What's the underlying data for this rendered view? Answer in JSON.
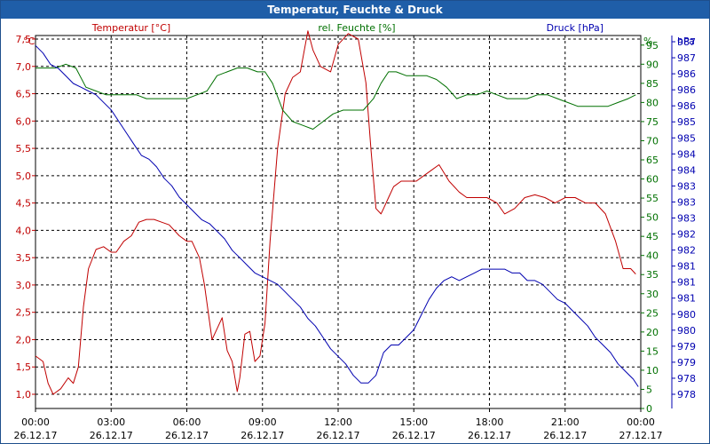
{
  "window": {
    "title": "Temperatur, Feuchte & Druck"
  },
  "chart_data": {
    "type": "line",
    "title": "Temperatur, Feuchte & Druck",
    "colors": {
      "temp": "#c00000",
      "hum": "#007000",
      "press": "#0000b0",
      "grid": "#000000",
      "frame": "#1f5ea8"
    },
    "x_ticks": [
      {
        "time": "00:00",
        "date": "26.12.17"
      },
      {
        "time": "03:00",
        "date": "26.12.17"
      },
      {
        "time": "06:00",
        "date": "26.12.17"
      },
      {
        "time": "09:00",
        "date": "26.12.17"
      },
      {
        "time": "12:00",
        "date": "26.12.17"
      },
      {
        "time": "15:00",
        "date": "26.12.17"
      },
      {
        "time": "18:00",
        "date": "26.12.17"
      },
      {
        "time": "21:00",
        "date": "26.12.17"
      },
      {
        "time": "00:00",
        "date": "27.12.17"
      }
    ],
    "xlim": [
      0,
      24
    ],
    "axes": {
      "temp": {
        "name": "Temperatur [°C]",
        "unit": "°C",
        "ylim": [
          0.8,
          7.85
        ],
        "ticks": [
          "1,0",
          "1,5",
          "2,0",
          "2,5",
          "3,0",
          "3,5",
          "4,0",
          "4,5",
          "5,0",
          "5,5",
          "6,0",
          "6,5",
          "7,0",
          "7,5"
        ]
      },
      "hum": {
        "name": "rel. Feuchte [%]",
        "unit": "%",
        "ylim": [
          0,
          97.5
        ],
        "ticks": [
          "0",
          "5",
          "10",
          "15",
          "20",
          "25",
          "30",
          "35",
          "40",
          "45",
          "50",
          "55",
          "60",
          "65",
          "70",
          "75",
          "80",
          "85",
          "90",
          "95"
        ]
      },
      "press": {
        "name": "Druck [hPa]",
        "unit": "hPa",
        "ticks": [
          "978",
          "978",
          "979",
          "979",
          "980",
          "980",
          "981",
          "981",
          "981",
          "982",
          "982",
          "983",
          "983",
          "983",
          "984",
          "984",
          "985",
          "985",
          "986",
          "986",
          "986",
          "987",
          "987"
        ]
      }
    },
    "series": [
      {
        "name": "Temperatur [°C]",
        "axis": "temp",
        "x": [
          0,
          0.3,
          0.5,
          0.7,
          1.0,
          1.3,
          1.5,
          1.7,
          1.9,
          2.1,
          2.4,
          2.7,
          3.0,
          3.2,
          3.5,
          3.8,
          4.1,
          4.4,
          4.7,
          5.0,
          5.3,
          5.7,
          6.0,
          6.2,
          6.5,
          6.7,
          7.0,
          7.2,
          7.4,
          7.6,
          7.8,
          8.0,
          8.1,
          8.3,
          8.5,
          8.7,
          8.9,
          9.1,
          9.3,
          9.6,
          9.9,
          10.2,
          10.5,
          10.8,
          11.0,
          11.3,
          11.7,
          12.0,
          12.4,
          12.8,
          13.1,
          13.3,
          13.5,
          13.7,
          13.8,
          14.0,
          14.2,
          14.5,
          14.8,
          15.1,
          15.4,
          15.7,
          16.0,
          16.4,
          16.8,
          17.1,
          17.5,
          17.9,
          18.3,
          18.6,
          19.0,
          19.4,
          19.8,
          20.2,
          20.6,
          21.0,
          21.4,
          21.8,
          22.2,
          22.6,
          23.0,
          23.3,
          23.6,
          23.8
        ],
        "values": [
          1.7,
          1.6,
          1.2,
          1.0,
          1.1,
          1.3,
          1.2,
          1.5,
          2.6,
          3.3,
          3.65,
          3.7,
          3.6,
          3.6,
          3.8,
          3.9,
          4.15,
          4.2,
          4.2,
          4.15,
          4.1,
          3.9,
          3.8,
          3.8,
          3.5,
          3.0,
          2.0,
          2.2,
          2.4,
          1.8,
          1.6,
          1.05,
          1.3,
          2.1,
          2.15,
          1.6,
          1.7,
          2.3,
          3.8,
          5.5,
          6.5,
          6.8,
          6.9,
          7.65,
          7.3,
          7.0,
          6.9,
          7.4,
          7.6,
          7.5,
          6.7,
          5.5,
          4.4,
          4.3,
          4.4,
          4.6,
          4.8,
          4.9,
          4.9,
          4.9,
          5.0,
          5.1,
          5.2,
          4.9,
          4.7,
          4.6,
          4.6,
          4.6,
          4.5,
          4.3,
          4.4,
          4.6,
          4.65,
          4.6,
          4.5,
          4.6,
          4.6,
          4.5,
          4.5,
          4.3,
          3.8,
          3.3,
          3.3,
          3.2
        ]
      },
      {
        "name": "rel. Feuchte [%]",
        "axis": "hum",
        "x": [
          0,
          0.4,
          0.8,
          1.2,
          1.6,
          2.0,
          2.4,
          2.8,
          3.2,
          3.6,
          4.0,
          4.4,
          4.8,
          5.2,
          5.6,
          6.0,
          6.4,
          6.8,
          7.2,
          7.6,
          8.0,
          8.4,
          8.8,
          9.1,
          9.4,
          9.8,
          10.2,
          10.6,
          11.0,
          11.4,
          11.8,
          12.2,
          12.6,
          13.0,
          13.4,
          13.7,
          14.0,
          14.3,
          14.7,
          15.1,
          15.5,
          15.9,
          16.3,
          16.7,
          17.1,
          17.5,
          17.9,
          18.3,
          18.7,
          19.1,
          19.5,
          19.9,
          20.3,
          20.7,
          21.1,
          21.5,
          21.9,
          22.3,
          22.7,
          23.1,
          23.5,
          23.8
        ],
        "values": [
          89,
          89,
          89,
          90,
          89,
          84,
          83,
          82,
          82,
          82,
          82,
          81,
          81,
          81,
          81,
          81,
          82,
          83,
          87,
          88,
          89,
          89,
          88,
          88,
          85,
          78,
          75,
          74,
          73,
          75,
          77,
          78,
          78,
          78,
          81,
          85,
          88,
          88,
          87,
          87,
          87,
          86,
          84,
          81,
          82,
          82,
          83,
          82,
          81,
          81,
          81,
          82,
          82,
          81,
          80,
          79,
          79,
          79,
          79,
          80,
          81,
          82
        ]
      },
      {
        "name": "Druck [hPa]",
        "axis": "press",
        "x": [
          0,
          0.3,
          0.6,
          0.9,
          1.2,
          1.5,
          1.8,
          2.1,
          2.4,
          2.7,
          3.0,
          3.3,
          3.6,
          3.9,
          4.2,
          4.5,
          4.8,
          5.1,
          5.4,
          5.7,
          6.0,
          6.3,
          6.6,
          6.9,
          7.2,
          7.5,
          7.8,
          8.1,
          8.4,
          8.7,
          9.0,
          9.3,
          9.6,
          9.9,
          10.2,
          10.5,
          10.8,
          11.1,
          11.4,
          11.7,
          12.0,
          12.3,
          12.6,
          12.9,
          13.2,
          13.5,
          13.8,
          14.1,
          14.4,
          14.7,
          15.0,
          15.3,
          15.6,
          15.9,
          16.2,
          16.5,
          16.8,
          17.1,
          17.4,
          17.7,
          18.0,
          18.3,
          18.6,
          18.9,
          19.2,
          19.5,
          19.8,
          20.1,
          20.4,
          20.7,
          21.0,
          21.3,
          21.6,
          21.9,
          22.2,
          22.5,
          22.8,
          23.1,
          23.4,
          23.7,
          23.9
        ],
        "values": [
          987.2,
          987.0,
          986.7,
          986.6,
          986.4,
          986.2,
          986.1,
          986.0,
          985.9,
          985.7,
          985.5,
          985.2,
          984.9,
          984.6,
          984.3,
          984.2,
          984.0,
          983.7,
          983.5,
          983.2,
          983.0,
          982.8,
          982.6,
          982.5,
          982.3,
          982.1,
          981.8,
          981.6,
          981.4,
          981.2,
          981.1,
          981.0,
          980.9,
          980.7,
          980.5,
          980.3,
          980.0,
          979.8,
          979.5,
          979.2,
          979.0,
          978.8,
          978.5,
          978.3,
          978.3,
          978.5,
          979.1,
          979.3,
          979.3,
          979.5,
          979.7,
          980.1,
          980.5,
          980.8,
          981.0,
          981.1,
          981.0,
          981.1,
          981.2,
          981.3,
          981.3,
          981.3,
          981.3,
          981.2,
          981.2,
          981.0,
          981.0,
          980.9,
          980.7,
          980.5,
          980.4,
          980.2,
          980.0,
          979.8,
          979.5,
          979.3,
          979.1,
          978.8,
          978.6,
          978.4,
          978.2
        ]
      }
    ]
  }
}
